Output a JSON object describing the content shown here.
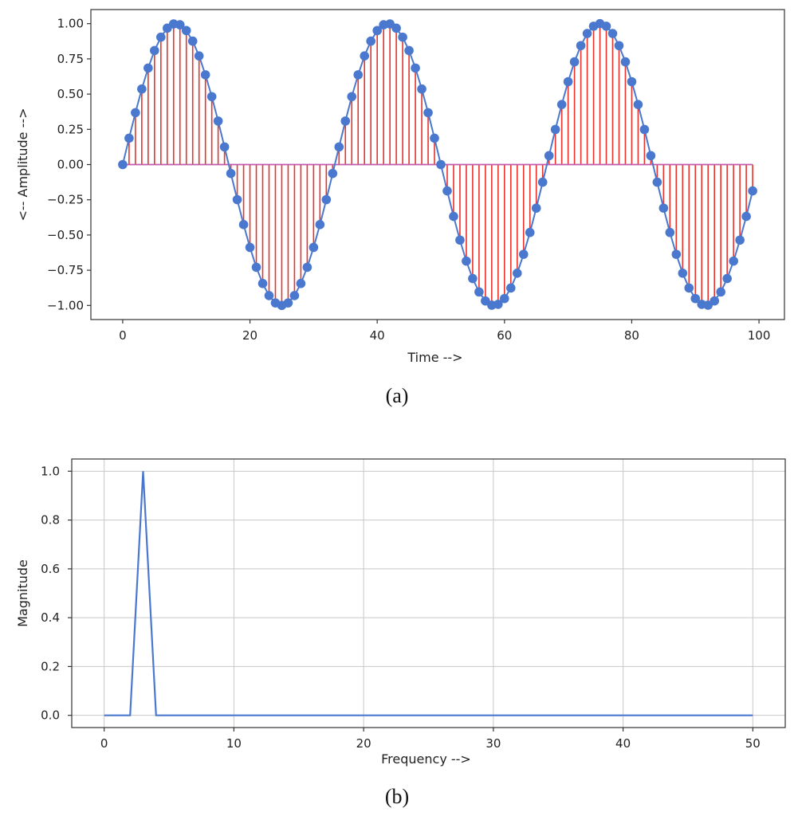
{
  "chart_data": [
    {
      "type": "stem",
      "caption": "(a)",
      "xlabel": "Time -->",
      "ylabel": "<-- Amplitude -->",
      "xlim": [
        -5,
        104
      ],
      "ylim": [
        -1.1,
        1.1
      ],
      "xticks": [
        0,
        20,
        40,
        60,
        80,
        100
      ],
      "yticks": [
        1.0,
        0.75,
        0.5,
        0.25,
        0.0,
        -0.25,
        -0.5,
        -0.75,
        -1.0
      ],
      "ytick_labels": [
        "1.00",
        "0.75",
        "0.50",
        "0.25",
        "0.00",
        "−0.25",
        "−0.50",
        "−0.75",
        "−1.00"
      ],
      "x": [
        0,
        1,
        2,
        3,
        4,
        5,
        6,
        7,
        8,
        9,
        10,
        11,
        12,
        13,
        14,
        15,
        16,
        17,
        18,
        19,
        20,
        21,
        22,
        23,
        24,
        25,
        26,
        27,
        28,
        29,
        30,
        31,
        32,
        33,
        34,
        35,
        36,
        37,
        38,
        39,
        40,
        41,
        42,
        43,
        44,
        45,
        46,
        47,
        48,
        49,
        50,
        51,
        52,
        53,
        54,
        55,
        56,
        57,
        58,
        59,
        60,
        61,
        62,
        63,
        64,
        65,
        66,
        67,
        68,
        69,
        70,
        71,
        72,
        73,
        74,
        75,
        76,
        77,
        78,
        79,
        80,
        81,
        82,
        83,
        84,
        85,
        86,
        87,
        88,
        89,
        90,
        91,
        92,
        93,
        94,
        95,
        96,
        97,
        98,
        99
      ],
      "y": [
        0.0,
        0.187,
        0.368,
        0.536,
        0.685,
        0.809,
        0.904,
        0.968,
        0.998,
        0.992,
        0.951,
        0.876,
        0.771,
        0.637,
        0.482,
        0.309,
        0.125,
        -0.063,
        -0.249,
        -0.426,
        -0.588,
        -0.729,
        -0.844,
        -0.93,
        -0.982,
        -1.0,
        -0.982,
        -0.93,
        -0.844,
        -0.729,
        -0.588,
        -0.426,
        -0.249,
        -0.063,
        0.125,
        0.309,
        0.482,
        0.637,
        0.771,
        0.876,
        0.951,
        0.992,
        0.998,
        0.968,
        0.904,
        0.809,
        0.685,
        0.536,
        0.368,
        0.187,
        0.0,
        -0.187,
        -0.368,
        -0.536,
        -0.685,
        -0.809,
        -0.904,
        -0.968,
        -0.998,
        -0.992,
        -0.951,
        -0.876,
        -0.771,
        -0.637,
        -0.482,
        -0.309,
        -0.125,
        0.063,
        0.249,
        0.426,
        0.588,
        0.729,
        0.844,
        0.93,
        0.982,
        1.0,
        0.982,
        0.93,
        0.844,
        0.729,
        0.588,
        0.426,
        0.249,
        0.063,
        -0.125,
        -0.309,
        -0.482,
        -0.637,
        -0.771,
        -0.876,
        -0.951,
        -0.992,
        -0.998,
        -0.968,
        -0.904,
        -0.809,
        -0.685,
        -0.536,
        -0.368,
        -0.187
      ],
      "colors": {
        "stem": "#e8322b",
        "marker": "#4a78cf",
        "line": "#4a78cf",
        "baseline": "#c05aa8"
      },
      "grid": false
    },
    {
      "type": "line",
      "caption": "(b)",
      "xlabel": "Frequency -->",
      "ylabel": "Magnitude",
      "xlim": [
        -2.5,
        52.5
      ],
      "ylim": [
        -0.05,
        1.05
      ],
      "xticks": [
        0,
        10,
        20,
        30,
        40,
        50
      ],
      "yticks": [
        0.0,
        0.2,
        0.4,
        0.6,
        0.8,
        1.0
      ],
      "ytick_labels": [
        "0.0",
        "0.2",
        "0.4",
        "0.6",
        "0.8",
        "1.0"
      ],
      "x": [
        0,
        1,
        2,
        3,
        4,
        5,
        6,
        7,
        8,
        9,
        10,
        11,
        12,
        13,
        14,
        15,
        16,
        17,
        18,
        19,
        20,
        21,
        22,
        23,
        24,
        25,
        26,
        27,
        28,
        29,
        30,
        31,
        32,
        33,
        34,
        35,
        36,
        37,
        38,
        39,
        40,
        41,
        42,
        43,
        44,
        45,
        46,
        47,
        48,
        49,
        50
      ],
      "y": [
        0,
        0,
        0,
        1.0,
        0,
        0,
        0,
        0,
        0,
        0,
        0,
        0,
        0,
        0,
        0,
        0,
        0,
        0,
        0,
        0,
        0,
        0,
        0,
        0,
        0,
        0,
        0,
        0,
        0,
        0,
        0,
        0,
        0,
        0,
        0,
        0,
        0,
        0,
        0,
        0,
        0,
        0,
        0,
        0,
        0,
        0,
        0,
        0,
        0,
        0,
        0
      ],
      "colors": {
        "line": "#4a78cf",
        "grid": "#c8c8c8"
      },
      "grid": true
    }
  ]
}
